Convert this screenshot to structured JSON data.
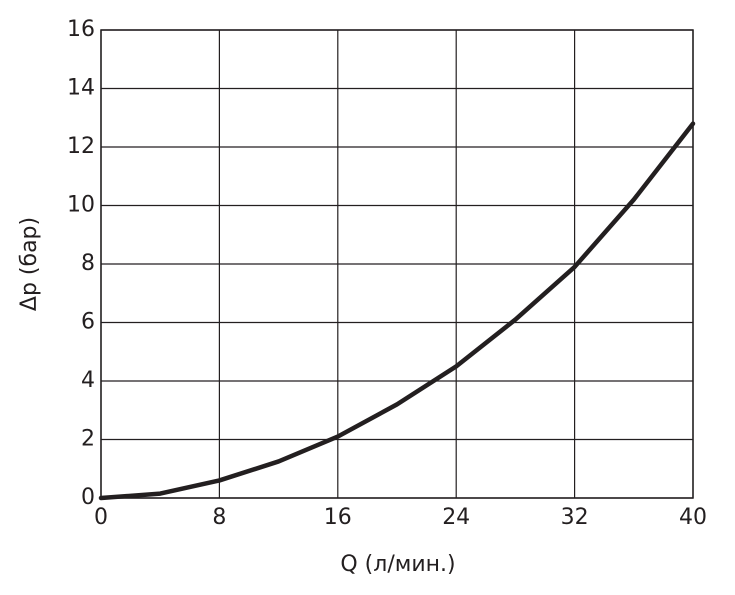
{
  "chart_data": {
    "type": "line",
    "x_label": "Q (л/мин.)",
    "y_label": "Δp (бар)",
    "x": [
      0,
      4,
      8,
      12,
      16,
      20,
      24,
      28,
      32,
      36,
      40
    ],
    "series": [
      {
        "name": "Δp",
        "color": "#231f20",
        "values": [
          0,
          0.15,
          0.6,
          1.25,
          2.1,
          3.2,
          4.5,
          6.1,
          7.9,
          10.2,
          12.8
        ]
      }
    ],
    "xlim": [
      0,
      40
    ],
    "xticks": [
      0,
      8,
      16,
      24,
      32,
      40
    ],
    "ylim": [
      0,
      16
    ],
    "yticks": [
      0,
      2,
      4,
      6,
      8,
      10,
      12,
      14,
      16
    ],
    "grid": true
  }
}
